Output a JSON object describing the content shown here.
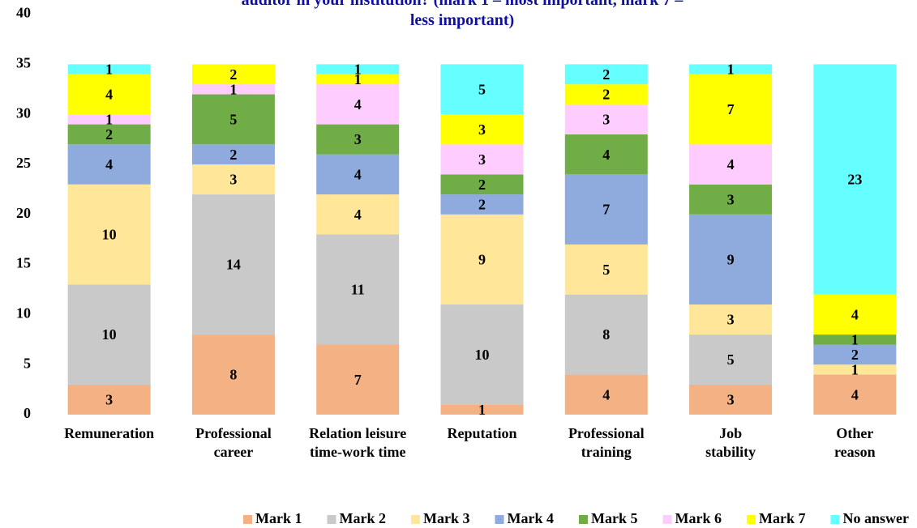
{
  "chart_data": {
    "type": "bar",
    "stacked": true,
    "title": "auditor in your institution? (mark 1 – most important, mark 7 – less important)",
    "categories": [
      "Remuneration",
      "Professional career",
      "Relation leisure time-work time",
      "Reputation",
      "Professional training",
      "Job stability",
      "Other reason"
    ],
    "series": [
      {
        "name": "Mark 1",
        "color": "#f4b183",
        "values": [
          3,
          8,
          7,
          1,
          4,
          3,
          4
        ]
      },
      {
        "name": "Mark 2",
        "color": "#c9c9c9",
        "values": [
          10,
          14,
          11,
          10,
          8,
          5,
          0
        ]
      },
      {
        "name": "Mark 3",
        "color": "#ffe699",
        "values": [
          10,
          3,
          4,
          9,
          5,
          3,
          1
        ]
      },
      {
        "name": "Mark 4",
        "color": "#8faadc",
        "values": [
          4,
          2,
          4,
          2,
          7,
          9,
          2
        ]
      },
      {
        "name": "Mark 5",
        "color": "#70ad47",
        "values": [
          2,
          5,
          3,
          2,
          4,
          3,
          1
        ]
      },
      {
        "name": "Mark 6",
        "color": "#ffccff",
        "values": [
          1,
          1,
          4,
          3,
          3,
          4,
          0
        ]
      },
      {
        "name": "Mark 7",
        "color": "#ffff00",
        "values": [
          4,
          2,
          1,
          3,
          2,
          7,
          4
        ]
      },
      {
        "name": "No answer",
        "color": "#66ffff",
        "values": [
          1,
          0,
          1,
          5,
          2,
          1,
          23
        ]
      }
    ],
    "ylim": [
      0,
      40
    ],
    "yticks": [
      0,
      5,
      10,
      15,
      20,
      25,
      30,
      35,
      40
    ],
    "grid": false,
    "legend": "bottom"
  }
}
